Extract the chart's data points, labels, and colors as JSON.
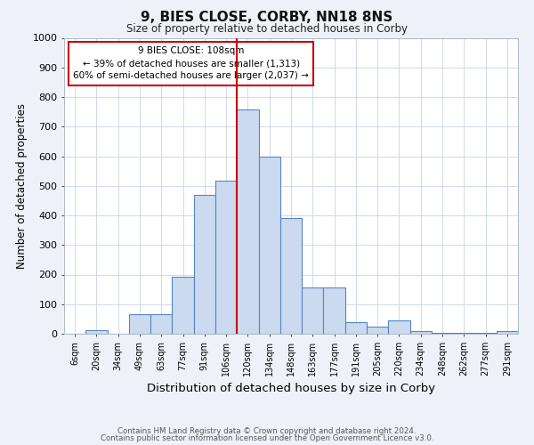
{
  "title": "9, BIES CLOSE, CORBY, NN18 8NS",
  "subtitle": "Size of property relative to detached houses in Corby",
  "xlabel": "Distribution of detached houses by size in Corby",
  "ylabel": "Number of detached properties",
  "categories": [
    "6sqm",
    "20sqm",
    "34sqm",
    "49sqm",
    "63sqm",
    "77sqm",
    "91sqm",
    "106sqm",
    "120sqm",
    "134sqm",
    "148sqm",
    "163sqm",
    "177sqm",
    "191sqm",
    "205sqm",
    "220sqm",
    "234sqm",
    "248sqm",
    "262sqm",
    "277sqm",
    "291sqm"
  ],
  "values": [
    0,
    13,
    0,
    65,
    65,
    193,
    470,
    517,
    757,
    597,
    390,
    157,
    157,
    40,
    25,
    45,
    10,
    3,
    3,
    3,
    8
  ],
  "bar_color": "#ccdaf0",
  "bar_edge_color": "#5585c5",
  "vline_x": 7.5,
  "vline_color": "#cc0000",
  "ylim": [
    0,
    1000
  ],
  "yticks": [
    0,
    100,
    200,
    300,
    400,
    500,
    600,
    700,
    800,
    900,
    1000
  ],
  "annotation_text": "9 BIES CLOSE: 108sqm\n← 39% of detached houses are smaller (1,313)\n60% of semi-detached houses are larger (2,037) →",
  "footer_line1": "Contains HM Land Registry data © Crown copyright and database right 2024.",
  "footer_line2": "Contains public sector information licensed under the Open Government Licence v3.0.",
  "bg_color": "#eef2f8",
  "plot_bg_color": "#ffffff",
  "grid_color": "#c8d4e8"
}
